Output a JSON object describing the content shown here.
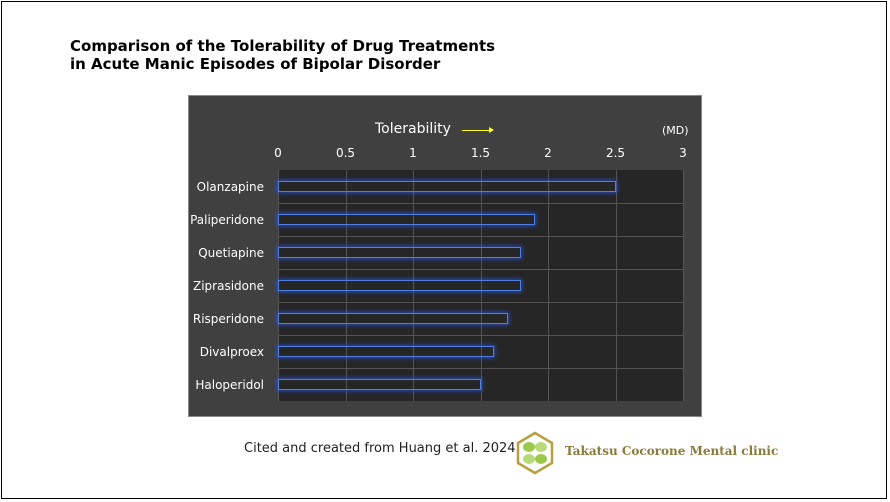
{
  "title_lines": [
    "Comparison of the Tolerability of Drug Treatments",
    "in Acute Manic Episodes of Bipolar Disorder"
  ],
  "chart_data": {
    "type": "bar",
    "orientation": "horizontal",
    "xlabel": "Tolerability",
    "unit": "(MD)",
    "xlim": [
      0,
      3
    ],
    "xticks": [
      "0",
      "0.5",
      "1",
      "1.5",
      "2",
      "2.5",
      "3"
    ],
    "grid": true,
    "categories": [
      "Olanzapine",
      "Paliperidone",
      "Quetiapine",
      "Ziprasidone",
      "Risperidone",
      "Divalproex",
      "Haloperidol"
    ],
    "values": [
      2.5,
      1.9,
      1.8,
      1.8,
      1.7,
      1.6,
      1.5
    ],
    "bar_color": "#4f7fe0",
    "arrow_color": "#ffff33"
  },
  "footer": {
    "citation": "Cited and created from Huang et al. 2024",
    "clinic": "Takatsu Cocorone Mental clinic"
  }
}
